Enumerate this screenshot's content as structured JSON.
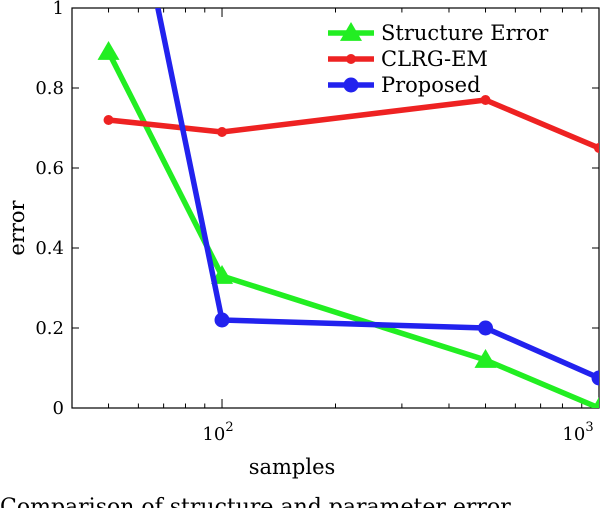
{
  "chart_data": {
    "type": "line",
    "xlabel": "samples",
    "ylabel": "error",
    "xscale": "log",
    "xlim": [
      40,
      1000
    ],
    "ylim": [
      0,
      1
    ],
    "yticks": [
      0,
      0.2,
      0.4,
      0.6,
      0.8,
      1
    ],
    "ytick_labels": [
      "0",
      "0.2",
      "0.4",
      "0.6",
      "0.8",
      "1"
    ],
    "xticks": [
      100,
      1000
    ],
    "xtick_labels": [
      {
        "base": "10",
        "exp": "2"
      },
      {
        "base": "10",
        "exp": "3"
      }
    ],
    "grid": false,
    "legend_position": "top-right",
    "series": [
      {
        "name": "Structure Error",
        "color": "#22ee22",
        "marker": "triangle",
        "x": [
          50,
          100,
          500,
          1000
        ],
        "y": [
          0.89,
          0.33,
          0.12,
          0.0
        ]
      },
      {
        "name": "CLRG-EM",
        "color": "#ee2222",
        "marker": "small-circle",
        "x": [
          50,
          100,
          500,
          1000
        ],
        "y": [
          0.72,
          0.69,
          0.77,
          0.65
        ]
      },
      {
        "name": "Proposed",
        "color": "#2222ee",
        "marker": "circle",
        "x": [
          50,
          100,
          500,
          1000
        ],
        "y": [
          1.6,
          0.22,
          0.2,
          0.075
        ]
      }
    ]
  },
  "caption_text": "Comparison of structure and parameter error"
}
